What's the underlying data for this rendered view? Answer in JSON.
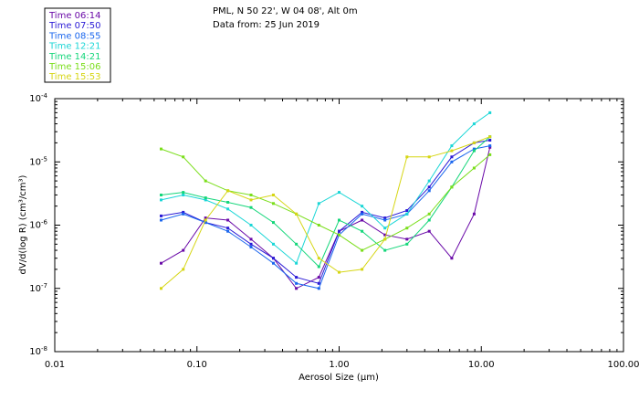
{
  "chart_data": {
    "type": "line",
    "title_lines": [
      "PML, N 50 22', W 04 08', Alt 0m",
      "Data from: 25 Jun 2019"
    ],
    "xlabel_pre": "Aerosol Size (",
    "xlabel_mu": "μ",
    "xlabel_post": "m)",
    "ylabel": "dV/d(log R) (cm³/cm³)",
    "x_scale": "log",
    "y_scale": "log",
    "xlim": [
      0.01,
      100
    ],
    "ylim": [
      1e-08,
      0.0001
    ],
    "x_ticks": [
      {
        "v": 0.01,
        "label": "0.01"
      },
      {
        "v": 0.1,
        "label": "0.10"
      },
      {
        "v": 1,
        "label": "1.00"
      },
      {
        "v": 10,
        "label": "10.00"
      },
      {
        "v": 100,
        "label": "100.00"
      }
    ],
    "y_ticks": [
      {
        "v": 1e-08,
        "base": "10",
        "exp": "-8"
      },
      {
        "v": 1e-07,
        "base": "10",
        "exp": "-7"
      },
      {
        "v": 1e-06,
        "base": "10",
        "exp": "-6"
      },
      {
        "v": 1e-05,
        "base": "10",
        "exp": "-5"
      },
      {
        "v": 0.0001,
        "base": "10",
        "exp": "-4"
      }
    ],
    "legend_position": "top-left",
    "x": [
      0.056,
      0.08,
      0.115,
      0.165,
      0.24,
      0.345,
      0.5,
      0.72,
      1.0,
      1.45,
      2.1,
      3.0,
      4.3,
      6.2,
      8.9,
      11.5
    ],
    "series": [
      {
        "name": "Time 06:14",
        "color": "#6a0aa8",
        "values": [
          2.5e-07,
          4e-07,
          1.3e-06,
          1.2e-06,
          6e-07,
          3e-07,
          1e-07,
          1.5e-07,
          8e-07,
          1.2e-06,
          7e-07,
          6e-07,
          8e-07,
          3e-07,
          1.5e-06,
          1.7e-05
        ]
      },
      {
        "name": "Time 07:50",
        "color": "#2a1ad6",
        "values": [
          1.4e-06,
          1.6e-06,
          1.1e-06,
          9e-07,
          5e-07,
          3e-07,
          1.5e-07,
          1.2e-07,
          8e-07,
          1.6e-06,
          1.3e-06,
          1.7e-06,
          4e-06,
          1.2e-05,
          2e-05,
          2.2e-05
        ]
      },
      {
        "name": "Time 08:55",
        "color": "#1a66ee",
        "values": [
          1.2e-06,
          1.5e-06,
          1.1e-06,
          8e-07,
          4.5e-07,
          2.5e-07,
          1.2e-07,
          1e-07,
          7e-07,
          1.5e-06,
          1.2e-06,
          1.5e-06,
          3.5e-06,
          1e-05,
          1.6e-05,
          1.8e-05
        ]
      },
      {
        "name": "Time 12:21",
        "color": "#1ad6d6",
        "values": [
          2.5e-06,
          3e-06,
          2.5e-06,
          1.8e-06,
          1e-06,
          5e-07,
          2.5e-07,
          2.2e-06,
          3.3e-06,
          2e-06,
          9e-07,
          1.5e-06,
          5e-06,
          1.8e-05,
          4e-05,
          6e-05
        ]
      },
      {
        "name": "Time 14:21",
        "color": "#14d67a",
        "values": [
          3e-06,
          3.3e-06,
          2.7e-06,
          2.3e-06,
          1.9e-06,
          1.1e-06,
          5e-07,
          2.2e-07,
          1.2e-06,
          8e-07,
          4e-07,
          5e-07,
          1.2e-06,
          4e-06,
          1.5e-05,
          2.5e-05
        ]
      },
      {
        "name": "Time 15:06",
        "color": "#7ade1a",
        "values": [
          1.6e-05,
          1.2e-05,
          5e-06,
          3.5e-06,
          3e-06,
          2.2e-06,
          1.5e-06,
          1e-06,
          7e-07,
          4e-07,
          6e-07,
          9e-07,
          1.5e-06,
          4e-06,
          8e-06,
          1.3e-05
        ]
      },
      {
        "name": "Time 15:53",
        "color": "#d6d614",
        "values": [
          1e-07,
          2e-07,
          1.2e-06,
          3.5e-06,
          2.5e-06,
          3e-06,
          1.5e-06,
          3e-07,
          1.8e-07,
          2e-07,
          6e-07,
          1.2e-05,
          1.2e-05,
          1.5e-05,
          2e-05,
          2.5e-05
        ]
      }
    ]
  }
}
